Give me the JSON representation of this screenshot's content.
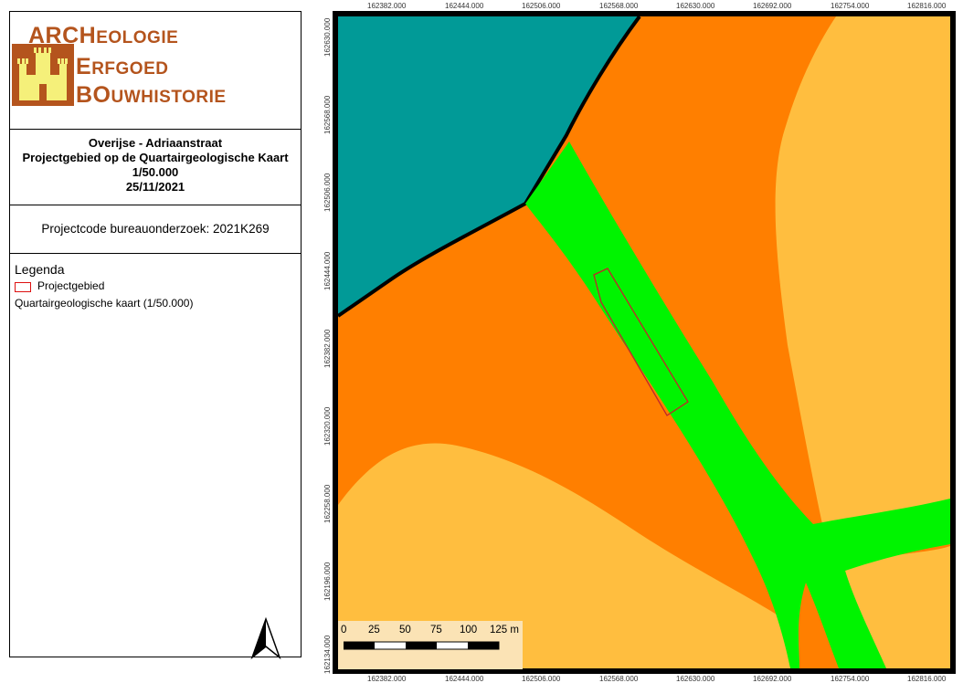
{
  "logo": {
    "line1_caps": "ARCH",
    "line1_rest": "EOLOGIE",
    "line2_caps": "E",
    "line2_rest": "RFGOED",
    "line3_caps": "BO",
    "line3_rest": "UWHISTORIE",
    "brand_color": "#b4541d",
    "castle_color": "#f5f07a"
  },
  "title": {
    "line1": "Overijse - Adriaanstraat",
    "line2": "Projectgebied op de Quartairgeologische Kaart",
    "line3": "1/50.000",
    "line4": "25/11/2021"
  },
  "project_code": "Projectcode bureauonderzoek: 2021K269",
  "legend": {
    "title": "Legenda",
    "item_label": "Projectgebied",
    "item_color": "#d11111",
    "layer_label": "Quartairgeologische kaart (1/50.000)"
  },
  "map": {
    "x_ticks": [
      "162382.000",
      "162444.000",
      "162506.000",
      "162568.000",
      "162630.000",
      "162692.000",
      "162754.000",
      "162816.000"
    ],
    "y_ticks": [
      "162630.000",
      "162568.000",
      "162506.000",
      "162444.000",
      "162382.000",
      "162320.000",
      "162258.000",
      "162196.000",
      "162134.000"
    ],
    "colors": {
      "teal": "#019a97",
      "orange": "#ff7f00",
      "light_orange": "#ffbe3f",
      "green": "#00f400",
      "outline": "#c0262b"
    }
  },
  "scale": {
    "labels": [
      "0",
      "25",
      "50",
      "75",
      "100",
      "125 m"
    ]
  }
}
